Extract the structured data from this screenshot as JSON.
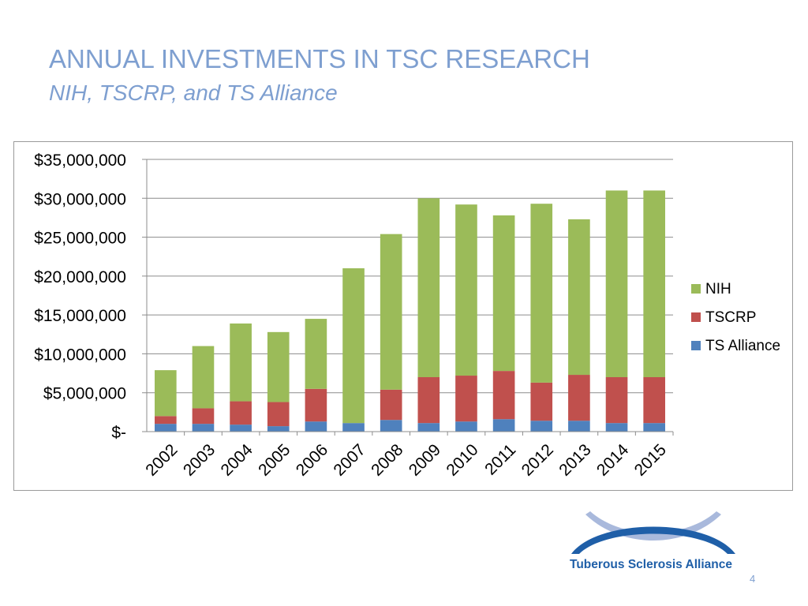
{
  "slide": {
    "title": "ANNUAL INVESTMENTS IN TSC RESEARCH",
    "subtitle": "NIH, TSCRP, and TS Alliance",
    "page_number": "4",
    "logo_text": "Tuberous Sclerosis Alliance"
  },
  "colors": {
    "title": "#7e9fd0",
    "nih": "#9bbb59",
    "tscrp": "#c0504d",
    "ts_alliance": "#4f81bd",
    "logo_blue": "#1f5fa8",
    "logo_light": "#a9b9dc"
  },
  "chart_data": {
    "type": "bar",
    "stacked": true,
    "categories": [
      "2002",
      "2003",
      "2004",
      "2005",
      "2006",
      "2007",
      "2008",
      "2009",
      "2010",
      "2011",
      "2012",
      "2013",
      "2014",
      "2015"
    ],
    "series": [
      {
        "name": "TS Alliance",
        "color": "#4f81bd",
        "values": [
          1000000,
          1000000,
          900000,
          700000,
          1300000,
          1100000,
          1500000,
          1100000,
          1300000,
          1600000,
          1400000,
          1400000,
          1100000,
          1100000
        ]
      },
      {
        "name": "TSCRP",
        "color": "#c0504d",
        "values": [
          1000000,
          2000000,
          3000000,
          3100000,
          4200000,
          0,
          3900000,
          5900000,
          5900000,
          6200000,
          4900000,
          5900000,
          5900000,
          5900000
        ]
      },
      {
        "name": "NIH",
        "color": "#9bbb59",
        "values": [
          5900000,
          8000000,
          10000000,
          9000000,
          9000000,
          19900000,
          20000000,
          23000000,
          22000000,
          20000000,
          23000000,
          20000000,
          24000000,
          24000000
        ]
      }
    ],
    "legend_order": [
      "NIH",
      "TSCRP",
      "TS Alliance"
    ],
    "ylim": [
      0,
      35000000
    ],
    "yticks": [
      0,
      5000000,
      10000000,
      15000000,
      20000000,
      25000000,
      30000000,
      35000000
    ],
    "ytick_labels": [
      "$-",
      "$5,000,000",
      "$10,000,000",
      "$15,000,000",
      "$20,000,000",
      "$25,000,000",
      "$30,000,000",
      "$35,000,000"
    ],
    "grid": true,
    "legend_position": "right"
  }
}
